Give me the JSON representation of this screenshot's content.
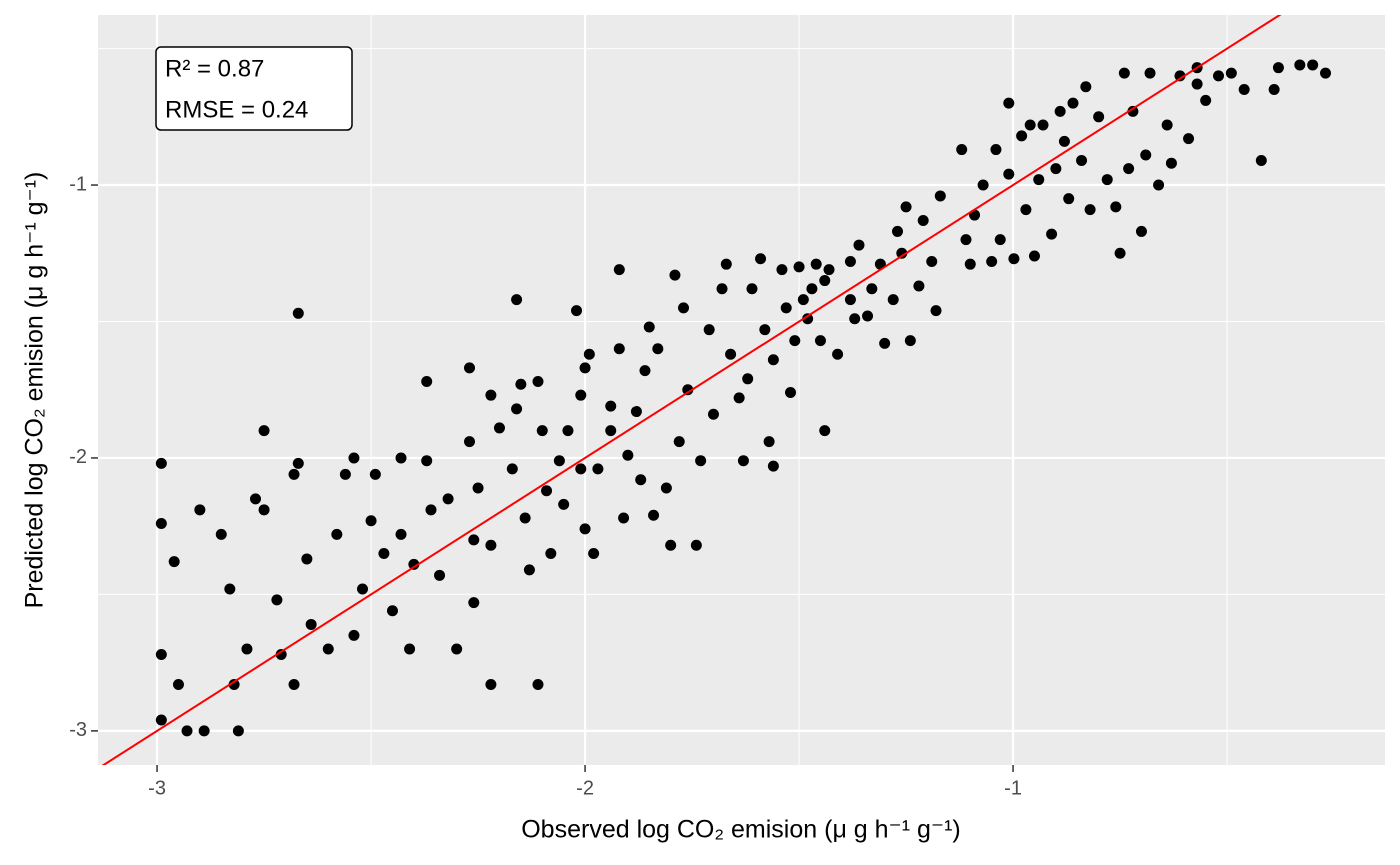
{
  "chart_data": {
    "type": "scatter",
    "x_label": "Observed log CO₂ emision (μ g h⁻¹ g⁻¹)",
    "y_label": "Predicted log CO₂ emision (μ g h⁻¹ g⁻¹)",
    "annotations": [
      "R² = 0.87",
      "RMSE = 0.24"
    ],
    "xlim": [
      -3.138,
      -0.131
    ],
    "ylim": [
      -3.125,
      -0.377
    ],
    "xticks": [
      -3,
      -2,
      -1
    ],
    "yticks": [
      -3,
      -2,
      -1
    ],
    "xminor": [
      -2.5,
      -1.5,
      -0.5
    ],
    "yminor": [
      -2.5,
      -1.5,
      -0.5
    ],
    "grid": true,
    "identity_line_color": "#ff0000",
    "series": [
      {
        "color": "#000000",
        "x": [
          -2.99,
          -2.99,
          -2.96,
          -2.99,
          -2.99,
          -2.93,
          -2.89,
          -2.9,
          -2.95,
          -2.85,
          -2.83,
          -2.82,
          -2.81,
          -2.79,
          -2.77,
          -2.75,
          -2.75,
          -2.72,
          -2.71,
          -2.67,
          -2.68,
          -2.67,
          -2.65,
          -2.68,
          -2.64,
          -2.6,
          -2.58,
          -2.56,
          -2.54,
          -2.54,
          -2.52,
          -2.5,
          -2.49,
          -2.47,
          -2.45,
          -2.43,
          -2.43,
          -2.4,
          -2.41,
          -2.37,
          -2.37,
          -2.36,
          -2.34,
          -2.32,
          -2.3,
          -2.27,
          -2.27,
          -2.26,
          -2.26,
          -2.25,
          -2.22,
          -2.22,
          -2.22,
          -2.2,
          -2.17,
          -2.16,
          -2.16,
          -2.15,
          -2.14,
          -2.13,
          -2.11,
          -2.11,
          -2.1,
          -2.09,
          -2.08,
          -2.06,
          -2.05,
          -2.04,
          -2.02,
          -2.01,
          -2.01,
          -2.0,
          -2.0,
          -1.99,
          -1.98,
          -1.97,
          -1.94,
          -1.94,
          -1.92,
          -1.92,
          -1.91,
          -1.9,
          -1.88,
          -1.87,
          -1.86,
          -1.85,
          -1.84,
          -1.83,
          -1.81,
          -1.8,
          -1.79,
          -1.78,
          -1.77,
          -1.76,
          -1.74,
          -1.73,
          -1.71,
          -1.7,
          -1.68,
          -1.67,
          -1.66,
          -1.64,
          -1.63,
          -1.62,
          -1.61,
          -1.59,
          -1.58,
          -1.57,
          -1.56,
          -1.56,
          -1.54,
          -1.53,
          -1.52,
          -1.51,
          -1.5,
          -1.49,
          -1.48,
          -1.47,
          -1.46,
          -1.45,
          -1.44,
          -1.44,
          -1.43,
          -1.41,
          -1.38,
          -1.38,
          -1.37,
          -1.36,
          -1.34,
          -1.33,
          -1.31,
          -1.3,
          -1.28,
          -1.27,
          -1.26,
          -1.25,
          -1.24,
          -1.22,
          -1.21,
          -1.19,
          -1.18,
          -1.17,
          -1.12,
          -1.11,
          -1.1,
          -1.09,
          -1.07,
          -1.05,
          -1.04,
          -1.03,
          -1.01,
          -1.01,
          -0.998,
          -0.98,
          -0.97,
          -0.96,
          -0.95,
          -0.94,
          -0.93,
          -0.91,
          -0.9,
          -0.89,
          -0.88,
          -0.87,
          -0.86,
          -0.84,
          -0.83,
          -0.82,
          -0.8,
          -0.78,
          -0.76,
          -0.75,
          -0.74,
          -0.73,
          -0.72,
          -0.7,
          -0.69,
          -0.68,
          -0.66,
          -0.64,
          -0.63,
          -0.61,
          -0.59,
          -0.57,
          -0.57,
          -0.55,
          -0.52,
          -0.49,
          -0.46,
          -0.42,
          -0.39,
          -0.38,
          -0.33,
          -0.3,
          -0.27
        ],
        "values": [
          -2.02,
          -2.24,
          -2.38,
          -2.72,
          -2.96,
          -3.0,
          -3.0,
          -2.19,
          -2.83,
          -2.28,
          -2.48,
          -2.83,
          -3.0,
          -2.7,
          -2.15,
          -1.9,
          -2.19,
          -2.52,
          -2.72,
          -1.47,
          -2.06,
          -2.02,
          -2.37,
          -2.83,
          -2.61,
          -2.7,
          -2.28,
          -2.06,
          -2.0,
          -2.65,
          -2.48,
          -2.23,
          -2.06,
          -2.35,
          -2.56,
          -2.0,
          -2.28,
          -2.39,
          -2.7,
          -1.72,
          -2.01,
          -2.19,
          -2.43,
          -2.15,
          -2.7,
          -1.94,
          -1.67,
          -2.3,
          -2.53,
          -2.11,
          -2.83,
          -1.77,
          -2.32,
          -1.89,
          -2.04,
          -1.42,
          -1.82,
          -1.73,
          -2.22,
          -2.41,
          -2.83,
          -1.72,
          -1.9,
          -2.12,
          -2.35,
          -2.01,
          -2.17,
          -1.9,
          -1.46,
          -1.77,
          -2.04,
          -1.67,
          -2.26,
          -1.62,
          -2.35,
          -2.04,
          -1.81,
          -1.9,
          -1.31,
          -1.6,
          -2.22,
          -1.99,
          -1.83,
          -2.08,
          -1.68,
          -1.52,
          -2.21,
          -1.6,
          -2.11,
          -2.32,
          -1.33,
          -1.94,
          -1.45,
          -1.75,
          -2.32,
          -2.01,
          -1.53,
          -1.84,
          -1.38,
          -1.29,
          -1.62,
          -1.78,
          -2.01,
          -1.71,
          -1.38,
          -1.27,
          -1.53,
          -1.94,
          -1.64,
          -2.03,
          -1.31,
          -1.45,
          -1.76,
          -1.57,
          -1.3,
          -1.42,
          -1.49,
          -1.38,
          -1.29,
          -1.57,
          -1.35,
          -1.9,
          -1.31,
          -1.62,
          -1.42,
          -1.28,
          -1.49,
          -1.22,
          -1.48,
          -1.38,
          -1.29,
          -1.58,
          -1.42,
          -1.17,
          -1.25,
          -1.08,
          -1.57,
          -1.37,
          -1.13,
          -1.28,
          -1.46,
          -1.04,
          -0.87,
          -1.2,
          -1.29,
          -1.11,
          -1.0,
          -1.28,
          -0.87,
          -1.2,
          -0.96,
          -0.7,
          -1.27,
          -0.82,
          -1.09,
          -0.78,
          -1.26,
          -0.98,
          -0.78,
          -1.18,
          -0.94,
          -0.73,
          -0.84,
          -1.05,
          -0.7,
          -0.91,
          -0.64,
          -1.09,
          -0.75,
          -0.98,
          -1.08,
          -1.25,
          -0.59,
          -0.94,
          -0.73,
          -1.17,
          -0.89,
          -0.59,
          -1.0,
          -0.78,
          -0.92,
          -0.6,
          -0.83,
          -0.57,
          -0.63,
          -0.69,
          -0.6,
          -0.59,
          -0.65,
          -0.91,
          -0.65,
          -0.57,
          -0.56,
          -0.56,
          -0.59
        ]
      }
    ]
  }
}
